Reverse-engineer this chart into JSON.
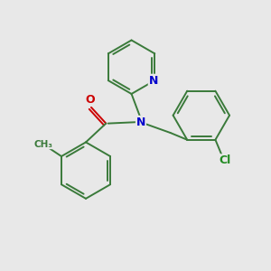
{
  "background_color": "#e8e8e8",
  "bond_color": "#3a7a3a",
  "N_color": "#0000cc",
  "O_color": "#cc0000",
  "Cl_color": "#228B22",
  "figsize": [
    3.0,
    3.0
  ],
  "dpi": 100,
  "xlim": [
    0,
    10
  ],
  "ylim": [
    0,
    10
  ]
}
